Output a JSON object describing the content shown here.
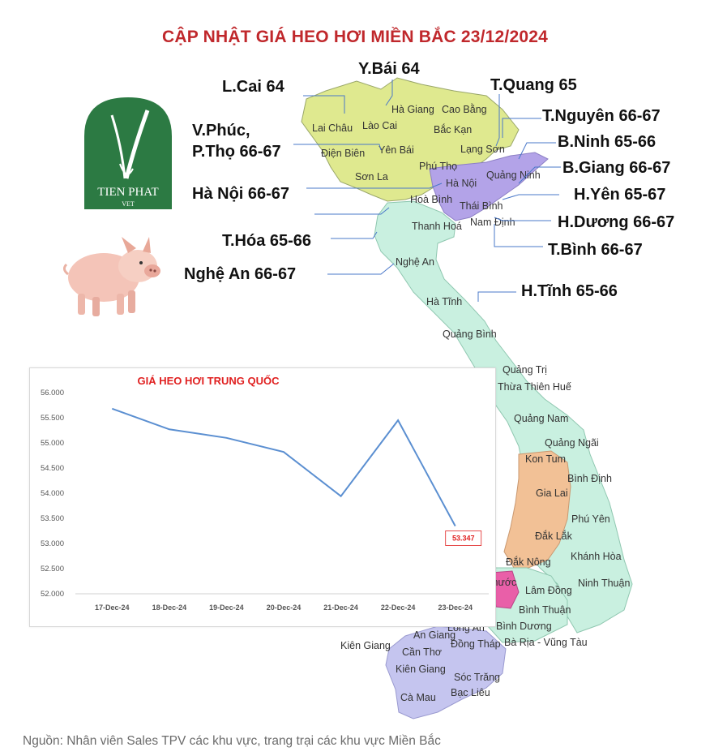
{
  "title": "CẬP NHẬT GIÁ HEO HƠI MIỀN BẮC  23/12/2024",
  "logo": {
    "brand": "TIEN PHAT",
    "sub": "VET"
  },
  "price_labels": [
    {
      "id": "lcai",
      "text": "L.Cai 64"
    },
    {
      "id": "ybai",
      "text": "Y.Bái 64"
    },
    {
      "id": "tquang",
      "text": "T.Quang 65"
    },
    {
      "id": "vphuc1",
      "text": "V.Phúc,"
    },
    {
      "id": "vphuc2",
      "text": "P.Thọ 66-67"
    },
    {
      "id": "tnguyen",
      "text": "T.Nguyên 66-67"
    },
    {
      "id": "bninh",
      "text": "B.Ninh 65-66"
    },
    {
      "id": "bgiang",
      "text": "B.Giang 66-67"
    },
    {
      "id": "hanoi",
      "text": "Hà Nội 66-67"
    },
    {
      "id": "hyen",
      "text": "H.Yên 65-67"
    },
    {
      "id": "hduong",
      "text": "H.Dương 66-67"
    },
    {
      "id": "thoa",
      "text": "T.Hóa 65-66"
    },
    {
      "id": "tbinh",
      "text": "T.Bình 66-67"
    },
    {
      "id": "nghean",
      "text": "Nghệ An 66-67"
    },
    {
      "id": "htinh",
      "text": "H.Tĩnh 65-66"
    }
  ],
  "provinces": [
    "Hà Giang",
    "Cao Bằng",
    "Lai Châu",
    "Lào Cai",
    "Bắc Kạn",
    "Điện Biên",
    "Yên Bái",
    "Lạng Sơn",
    "Phú Thọ",
    "Sơn La",
    "Hà Nội",
    "Quảng Ninh",
    "Hoà Bình",
    "Thái Bình",
    "Nam Định",
    "Thanh Hoá",
    "Nghệ An",
    "Hà Tĩnh",
    "Quảng Bình",
    "Quảng Trị",
    "Thừa Thiên Huế",
    "Quảng Nam",
    "Quảng Ngãi",
    "Kon Tum",
    "Bình Định",
    "Gia Lai",
    "Phú Yên",
    "Đắk Lắk",
    "Đắk Nông",
    "Khánh Hòa",
    "Lâm Đồng",
    "Ninh Thuận",
    "Bình Phước",
    "Bình Thuận",
    "Bình Dương",
    "Long An",
    "Bà Rịa - Vũng Tàu",
    "Kiên Giang",
    "An Giang",
    "Đồng Tháp",
    "Cần Thơ",
    "Sóc Trăng",
    "Bạc Liêu",
    "Cà Mau"
  ],
  "chart_data": {
    "type": "line",
    "title": "GIÁ HEO HƠI TRUNG QUỐC",
    "categories": [
      "17-Dec-24",
      "18-Dec-24",
      "19-Dec-24",
      "20-Dec-24",
      "21-Dec-24",
      "22-Dec-24",
      "23-Dec-24"
    ],
    "series": [
      {
        "values": [
          55.68,
          55.27,
          55.1,
          54.82,
          53.94,
          55.45,
          53.347
        ]
      }
    ],
    "yticks": [
      "56.000",
      "55.500",
      "55.000",
      "54.500",
      "54.000",
      "53.500",
      "53.000",
      "52.500",
      "52.000"
    ],
    "ylim": [
      52.0,
      56.0
    ],
    "last_label": "53.347",
    "line_color": "#5b8fd1",
    "grid": false
  },
  "source_note": "Nguồn: Nhân viên Sales TPV các khu vực, trang trại các khu vực Miền Bắc"
}
